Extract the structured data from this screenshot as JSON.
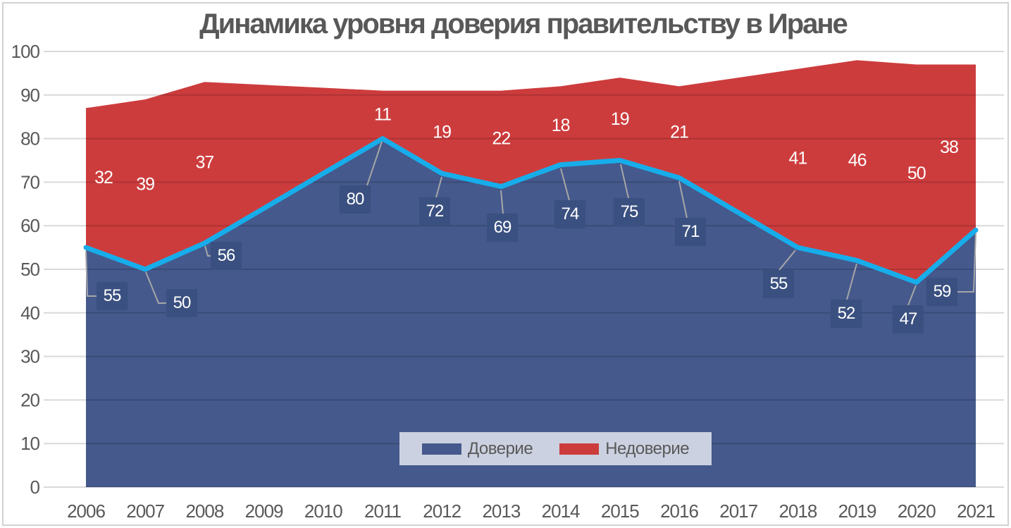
{
  "title": "Динамика уровня доверия правительству в Иране",
  "colors": {
    "trust_area": "#45598C",
    "distrust_area": "#CD3C3D",
    "trust_line": "#17ADEA",
    "label_box": "#3A5080",
    "label_text": "#FFFFFF",
    "axis_text": "#595959",
    "leader_line": "#A6A6A6",
    "legend_bg": "#CBD1E0",
    "title_text": "#585858"
  },
  "legend": {
    "items": [
      {
        "label": "Доверие",
        "color": "#45598C"
      },
      {
        "label": "Недоверие",
        "color": "#CD3C3D"
      }
    ]
  },
  "chart_data": {
    "type": "area",
    "stacked": true,
    "title": "Динамика уровня доверия правительству в Иране",
    "categories": [
      "2006",
      "2007",
      "2008",
      "2009",
      "2010",
      "2011",
      "2012",
      "2013",
      "2014",
      "2015",
      "2016",
      "2017",
      "2018",
      "2019",
      "2020",
      "2021"
    ],
    "series": [
      {
        "name": "Доверие",
        "color": "#45598C",
        "values": [
          55,
          50,
          56,
          null,
          null,
          80,
          72,
          69,
          74,
          75,
          71,
          null,
          55,
          52,
          47,
          59
        ]
      },
      {
        "name": "Недоверие",
        "color": "#CD3C3D",
        "values": [
          32,
          39,
          37,
          null,
          null,
          11,
          19,
          22,
          18,
          19,
          21,
          null,
          41,
          46,
          50,
          38
        ]
      }
    ],
    "overlay_line": {
      "series": "Доверие",
      "color": "#17ADEA"
    },
    "xlabel": "",
    "ylabel": "",
    "ylim": [
      0,
      100
    ],
    "ytick_step": 10,
    "grid": true,
    "legend_position": "bottom-center-inside",
    "data_labels": {
      "Доверие": "white text in dark blue boxes with gray leader lines",
      "Недоверие": "plain white text inside red band"
    }
  }
}
